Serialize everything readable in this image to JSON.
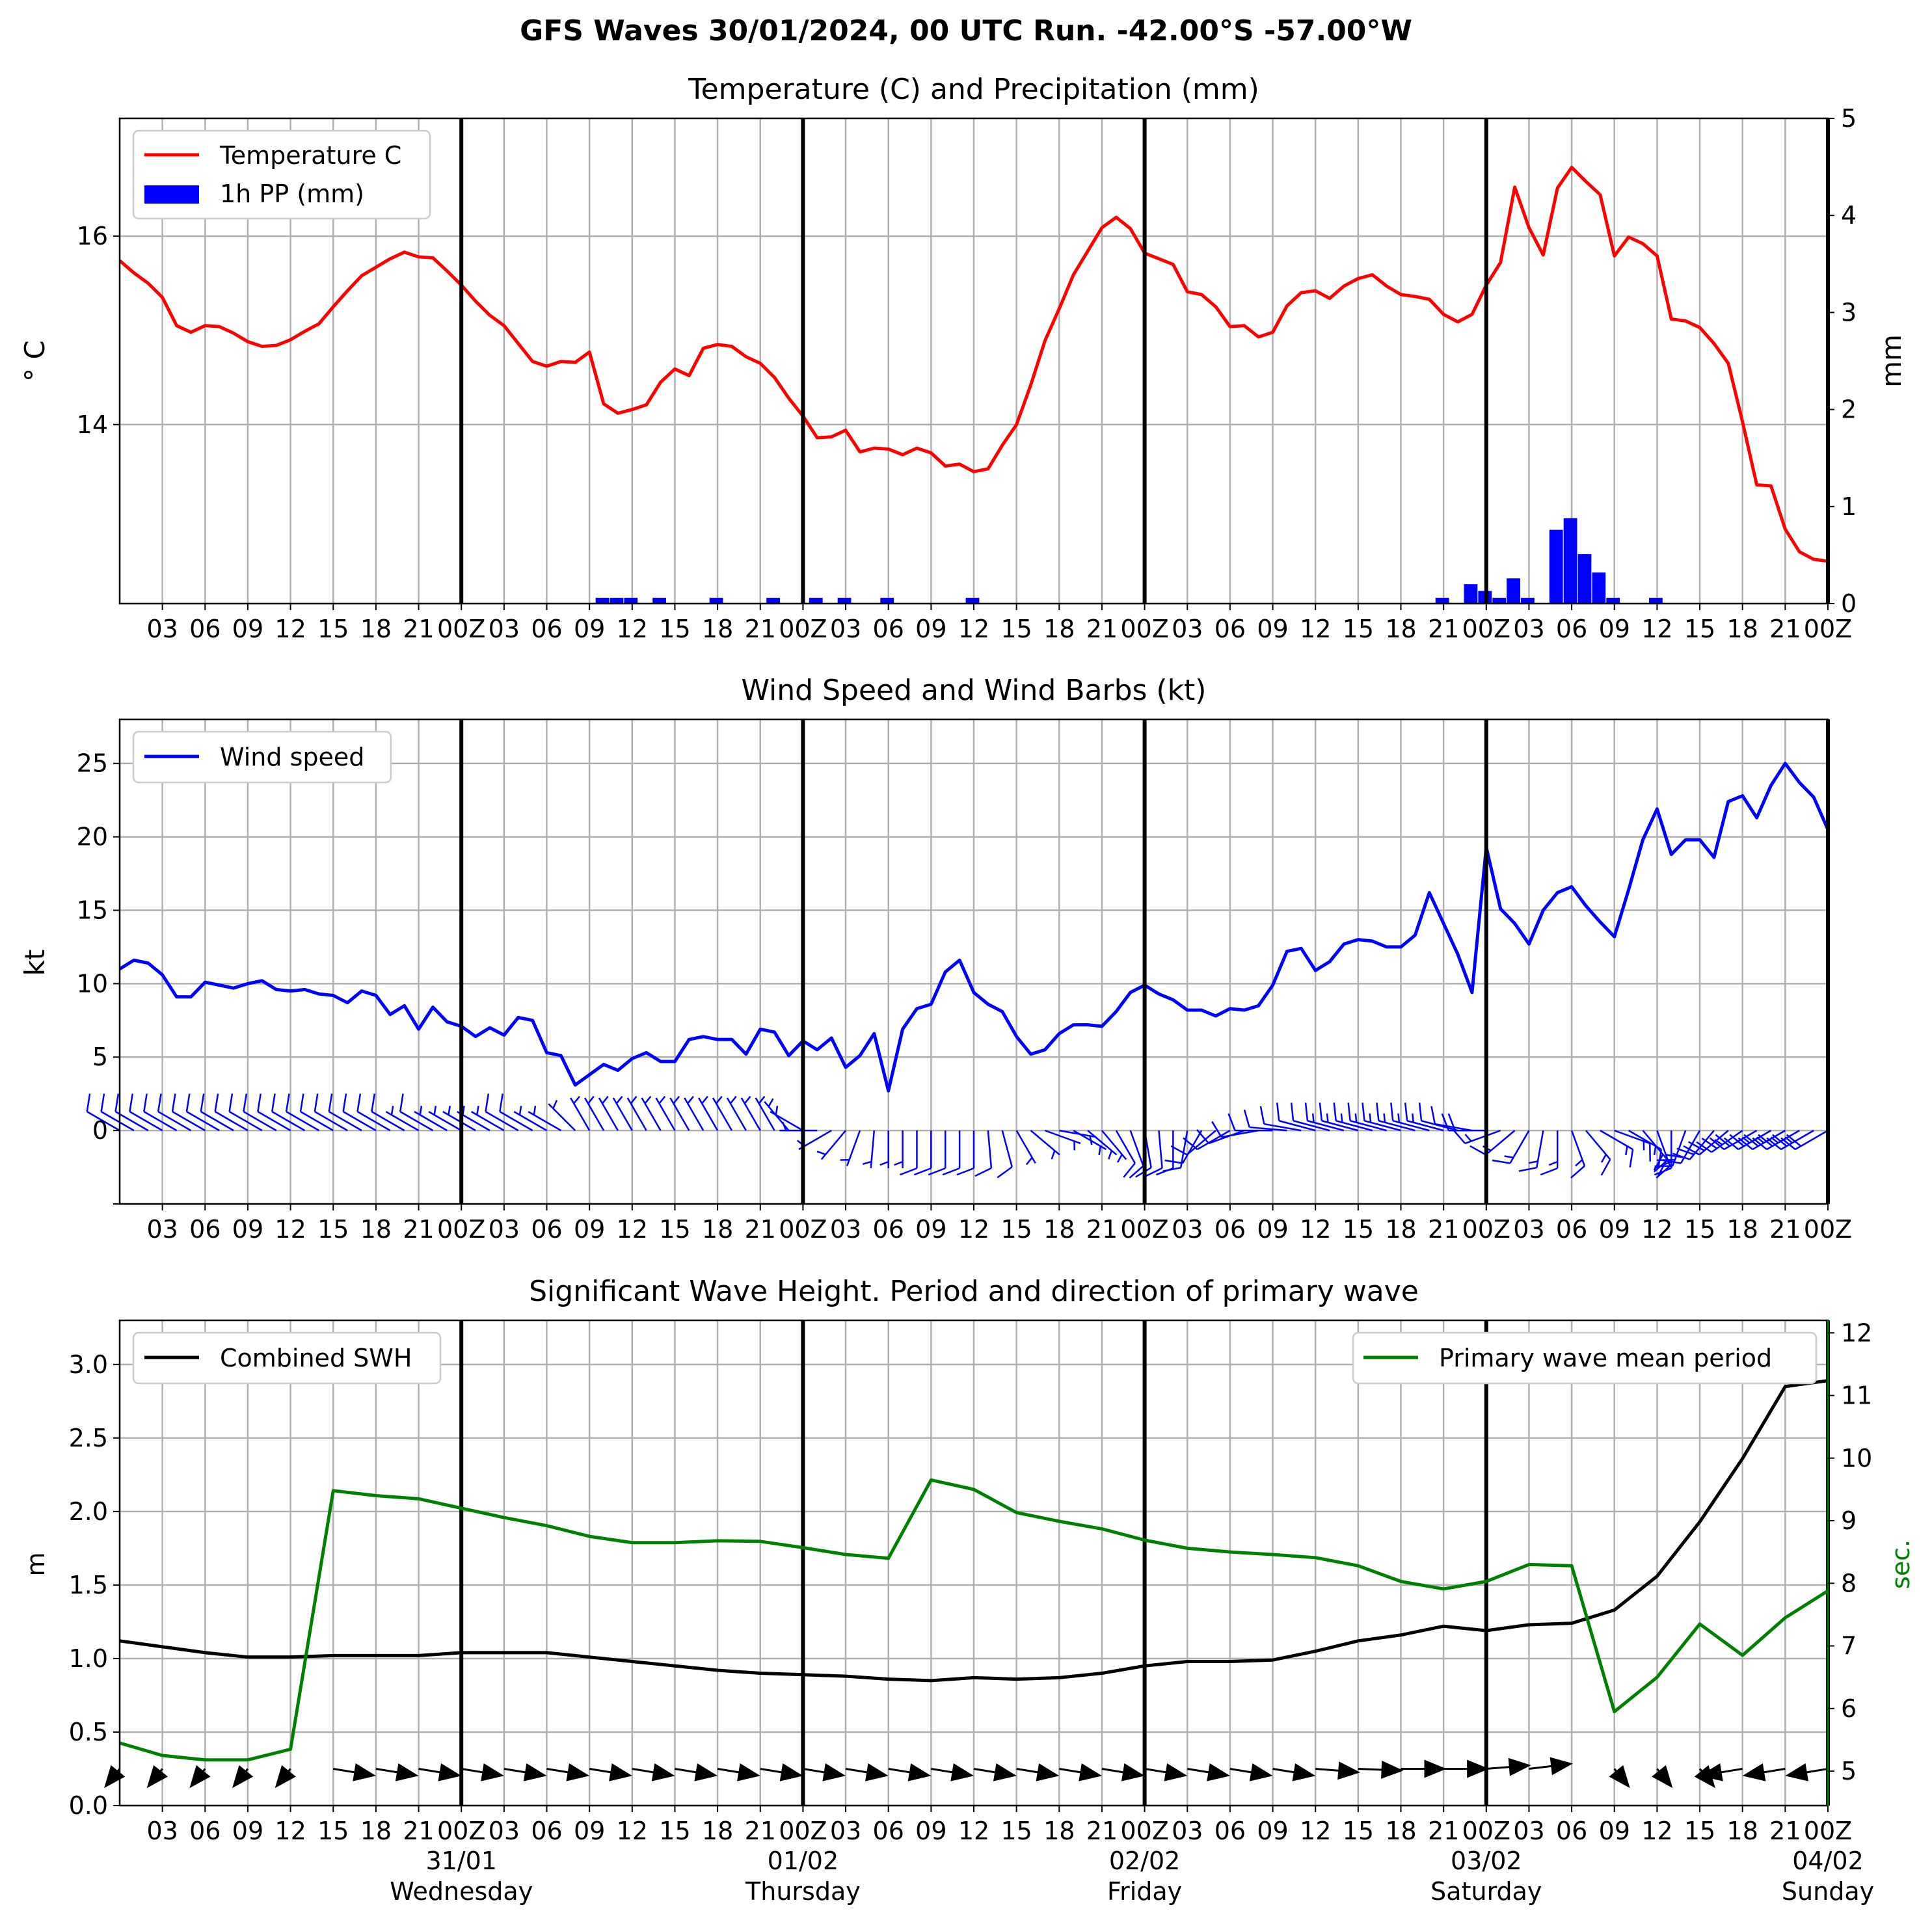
{
  "figure": {
    "title": "GFS Waves 30/01/2024, 00 UTC Run. -42.00°S -57.00°W",
    "x_tick_labels": [
      "03",
      "06",
      "09",
      "12",
      "15",
      "18",
      "21",
      "00Z",
      "03",
      "06",
      "09",
      "12",
      "15",
      "18",
      "21",
      "00Z",
      "03",
      "06",
      "09",
      "12",
      "15",
      "18",
      "21",
      "00Z",
      "03",
      "06",
      "09",
      "12",
      "15",
      "18",
      "21",
      "00Z",
      "03",
      "06",
      "09",
      "12",
      "15",
      "18",
      "21",
      "00Z"
    ],
    "day_labels": [
      {
        "date": "31/01",
        "day": "Wednesday"
      },
      {
        "date": "01/02",
        "day": "Thursday"
      },
      {
        "date": "02/02",
        "day": "Friday"
      },
      {
        "date": "03/02",
        "day": "Saturday"
      },
      {
        "date": "04/02",
        "day": "Sunday"
      }
    ],
    "colors": {
      "temperature": "#ff0000",
      "precip": "#0000ff",
      "wind": "#0000ff",
      "swh": "#000000",
      "period": "#008000",
      "grid": "#b0b0b0"
    }
  },
  "chart_data": [
    {
      "type": "line",
      "title": "Temperature (C) and Precipitation (mm)",
      "x_unit": "hours since 30/01/2024 00 UTC",
      "ylabel": "$^\\circ$C",
      "ylabel_right": "mm",
      "ylim": [
        12.1,
        17.25
      ],
      "ylim_right": [
        0,
        5
      ],
      "y_ticks": [
        14,
        16
      ],
      "y_ticks_right": [
        0,
        1,
        2,
        3,
        4,
        5
      ],
      "legend": [
        "Temperature C",
        "1h PP (mm)"
      ],
      "legend_position": "upper-left",
      "grid": true,
      "series": [
        {
          "name": "Temperature C",
          "color": "#ff0000",
          "x": [
            0,
            1,
            2,
            3,
            4,
            5,
            6,
            7,
            8,
            9,
            10,
            11,
            12,
            13,
            14,
            15,
            16,
            17,
            18,
            19,
            20,
            21,
            22,
            23,
            24,
            25,
            26,
            27,
            28,
            29,
            30,
            31,
            32,
            33,
            34,
            35,
            36,
            37,
            38,
            39,
            40,
            41,
            42,
            43,
            44,
            45,
            46,
            47,
            48,
            49,
            50,
            51,
            52,
            53,
            54,
            55,
            56,
            57,
            58,
            59,
            60,
            61,
            62,
            63,
            64,
            65,
            66,
            67,
            68,
            69,
            70,
            71,
            72,
            73,
            74,
            75,
            76,
            77,
            78,
            79,
            80,
            81,
            82,
            83,
            84,
            85,
            86,
            87,
            88,
            89,
            90,
            91,
            92,
            93,
            94,
            95,
            96,
            97,
            98,
            99,
            100,
            101,
            102,
            103,
            104,
            105,
            106,
            107,
            108,
            109,
            110,
            111,
            112,
            113,
            114,
            115,
            116,
            117,
            118,
            119,
            120
          ],
          "values": [
            15.74,
            15.61,
            15.5,
            15.35,
            15.05,
            14.98,
            15.05,
            15.04,
            14.97,
            14.88,
            14.83,
            14.84,
            14.9,
            14.99,
            15.07,
            15.25,
            15.42,
            15.58,
            15.67,
            15.76,
            15.83,
            15.78,
            15.77,
            15.63,
            15.48,
            15.31,
            15.16,
            15.05,
            14.86,
            14.67,
            14.62,
            14.67,
            14.66,
            14.77,
            14.22,
            14.12,
            14.16,
            14.21,
            14.45,
            14.59,
            14.52,
            14.81,
            14.85,
            14.83,
            14.72,
            14.65,
            14.5,
            14.28,
            14.09,
            13.86,
            13.87,
            13.94,
            13.71,
            13.75,
            13.74,
            13.68,
            13.75,
            13.7,
            13.56,
            13.58,
            13.5,
            13.53,
            13.78,
            14.0,
            14.42,
            14.89,
            15.23,
            15.59,
            15.84,
            16.09,
            16.2,
            16.08,
            15.82,
            15.76,
            15.7,
            15.41,
            15.38,
            15.25,
            15.04,
            15.05,
            14.93,
            14.98,
            15.26,
            15.4,
            15.42,
            15.34,
            15.47,
            15.55,
            15.59,
            15.47,
            15.38,
            15.36,
            15.33,
            15.17,
            15.09,
            15.17,
            15.48,
            15.72,
            16.52,
            16.09,
            15.8,
            16.51,
            16.73,
            16.58,
            16.44,
            15.79,
            15.99,
            15.92,
            15.79,
            15.12,
            15.1,
            15.03,
            14.86,
            14.65,
            14.03,
            13.36,
            13.35,
            12.89,
            12.65,
            12.57,
            12.55
          ]
        },
        {
          "name": "1h PP (mm)",
          "color": "#0000ff",
          "x": [
            34,
            35,
            36,
            38,
            42,
            46,
            49,
            51,
            54,
            60,
            93,
            95,
            96,
            97,
            98,
            99,
            101,
            102,
            103,
            104,
            105,
            106,
            108,
            110
          ],
          "values": [
            0.06,
            0.06,
            0.06,
            0.06,
            0.06,
            0.06,
            0.06,
            0.06,
            0.06,
            0.06,
            0.06,
            0.2,
            0.13,
            0.06,
            0.26,
            0.06,
            0.76,
            0.88,
            0.51,
            0.32,
            0.06,
            0.0,
            0.06,
            0.0
          ]
        }
      ]
    },
    {
      "type": "line",
      "title": "Wind Speed and Wind Barbs (kt)",
      "x_unit": "hours since 30/01/2024 00 UTC",
      "ylabel": "kt",
      "ylim": [
        -5,
        28
      ],
      "y_ticks": [
        0,
        5,
        10,
        15,
        20,
        25
      ],
      "legend": [
        "Wind speed"
      ],
      "legend_position": "upper-left",
      "grid": true,
      "series": [
        {
          "name": "Wind speed",
          "color": "#0000ff",
          "x": [
            0,
            1,
            2,
            3,
            4,
            5,
            6,
            7,
            8,
            9,
            10,
            11,
            12,
            13,
            14,
            15,
            16,
            17,
            18,
            19,
            20,
            21,
            22,
            23,
            24,
            25,
            26,
            27,
            28,
            29,
            30,
            31,
            32,
            33,
            34,
            35,
            36,
            37,
            38,
            39,
            40,
            41,
            42,
            43,
            44,
            45,
            46,
            47,
            48,
            49,
            50,
            51,
            52,
            53,
            54,
            55,
            56,
            57,
            58,
            59,
            60,
            61,
            62,
            63,
            64,
            65,
            66,
            67,
            68,
            69,
            70,
            71,
            72,
            73,
            74,
            75,
            76,
            77,
            78,
            79,
            80,
            81,
            82,
            83,
            84,
            85,
            86,
            87,
            88,
            89,
            90,
            91,
            92,
            93,
            94,
            95,
            96,
            97,
            98,
            99,
            100,
            101,
            102,
            103,
            104,
            105,
            106,
            107,
            108,
            109,
            110,
            111,
            112,
            113,
            114,
            115,
            116,
            117,
            118,
            119,
            120
          ],
          "values": [
            11.0,
            11.6,
            11.4,
            10.6,
            9.1,
            9.1,
            10.1,
            9.9,
            9.7,
            10.0,
            10.2,
            9.6,
            9.5,
            9.6,
            9.3,
            9.2,
            8.7,
            9.5,
            9.2,
            7.9,
            8.5,
            6.9,
            8.4,
            7.4,
            7.1,
            6.4,
            7.0,
            6.5,
            7.7,
            7.5,
            5.3,
            5.1,
            3.1,
            3.8,
            4.5,
            4.1,
            4.9,
            5.3,
            4.7,
            4.7,
            6.2,
            6.4,
            6.2,
            6.2,
            5.2,
            6.9,
            6.7,
            5.1,
            6.1,
            5.5,
            6.3,
            4.3,
            5.1,
            6.6,
            2.7,
            6.9,
            8.3,
            8.6,
            10.8,
            11.6,
            9.4,
            8.6,
            8.1,
            6.4,
            5.2,
            5.5,
            6.6,
            7.2,
            7.2,
            7.1,
            8.1,
            9.4,
            9.9,
            9.3,
            8.9,
            8.2,
            8.2,
            7.8,
            8.3,
            8.2,
            8.5,
            9.9,
            12.2,
            12.4,
            10.9,
            11.5,
            12.7,
            13.0,
            12.9,
            12.5,
            12.5,
            13.3,
            16.2,
            14.1,
            12.0,
            9.4,
            19.3,
            15.1,
            14.1,
            12.7,
            15.0,
            16.2,
            16.6,
            15.3,
            14.2,
            13.2,
            16.4,
            19.8,
            21.9,
            18.8,
            19.8,
            19.8,
            18.6,
            22.4,
            22.8,
            21.3,
            23.5,
            25.0,
            23.7,
            22.7,
            20.5
          ]
        }
      ],
      "barb_direction_deg": [
        300,
        300,
        300,
        300,
        300,
        300,
        300,
        300,
        300,
        300,
        300,
        300,
        300,
        300,
        300,
        300,
        300,
        300,
        300,
        300,
        300,
        300,
        300,
        300,
        300,
        300,
        300,
        300,
        300,
        300,
        300,
        300,
        315,
        330,
        330,
        330,
        330,
        330,
        330,
        330,
        330,
        330,
        330,
        330,
        330,
        330,
        330,
        320,
        300,
        270,
        240,
        220,
        200,
        185,
        180,
        180,
        180,
        180,
        180,
        180,
        180,
        175,
        165,
        150,
        130,
        110,
        100,
        120,
        130,
        140,
        150,
        160,
        170,
        175,
        180,
        190,
        210,
        230,
        240,
        250,
        260,
        270,
        275,
        280,
        285,
        285,
        285,
        285,
        285,
        285,
        285,
        285,
        285,
        285,
        285,
        280,
        270,
        250,
        230,
        210,
        190,
        180,
        160,
        140,
        120,
        110,
        120,
        140,
        160,
        180,
        200,
        210,
        220,
        230,
        235,
        240,
        240,
        240,
        240,
        240,
        240
      ]
    },
    {
      "type": "line",
      "title": "Significant Wave Height. Period and direction of primary wave",
      "x_unit": "hours since 30/01/2024 00 UTC",
      "ylabel": "m",
      "ylabel_right": "sec.",
      "ylim": [
        0,
        3.3
      ],
      "ylim_right": [
        4.45,
        12.2
      ],
      "y_ticks": [
        0.0,
        0.5,
        1.0,
        1.5,
        2.0,
        2.5,
        3.0
      ],
      "y_ticks_right": [
        5,
        6,
        7,
        8,
        9,
        10,
        11,
        12
      ],
      "legend": [
        "Combined SWH",
        "Primary wave mean period"
      ],
      "legend_position": "upper-left / upper-right",
      "grid": true,
      "series": [
        {
          "name": "Combined SWH",
          "color": "#000000",
          "x": [
            0,
            3,
            6,
            9,
            12,
            15,
            18,
            21,
            24,
            27,
            30,
            33,
            36,
            39,
            42,
            45,
            48,
            51,
            54,
            57,
            60,
            63,
            66,
            69,
            72,
            75,
            78,
            81,
            84,
            87,
            90,
            93,
            96,
            99,
            102,
            105,
            108,
            111,
            114,
            117,
            120
          ],
          "values": [
            1.12,
            1.08,
            1.04,
            1.01,
            1.01,
            1.02,
            1.02,
            1.02,
            1.04,
            1.04,
            1.04,
            1.01,
            0.98,
            0.95,
            0.92,
            0.9,
            0.89,
            0.88,
            0.86,
            0.85,
            0.87,
            0.86,
            0.87,
            0.9,
            0.95,
            0.98,
            0.98,
            0.99,
            1.05,
            1.12,
            1.16,
            1.22,
            1.19,
            1.23,
            1.24,
            1.33,
            1.56,
            1.93,
            2.36,
            2.85,
            2.89
          ]
        },
        {
          "name": "Primary wave mean period",
          "color": "#008000",
          "x": [
            0,
            3,
            6,
            9,
            12,
            15,
            18,
            21,
            24,
            27,
            30,
            33,
            36,
            39,
            42,
            45,
            48,
            51,
            54,
            57,
            60,
            63,
            66,
            69,
            72,
            75,
            78,
            81,
            84,
            87,
            90,
            93,
            96,
            99,
            102,
            105,
            108,
            111,
            114,
            117,
            120
          ],
          "values": [
            5.45,
            5.25,
            5.18,
            5.18,
            5.35,
            9.48,
            9.4,
            9.35,
            9.2,
            9.05,
            8.92,
            8.75,
            8.65,
            8.65,
            8.68,
            8.67,
            8.57,
            8.46,
            8.4,
            9.65,
            9.5,
            9.13,
            8.99,
            8.87,
            8.69,
            8.56,
            8.5,
            8.46,
            8.41,
            8.28,
            8.03,
            7.91,
            8.03,
            8.3,
            8.28,
            5.95,
            6.5,
            7.35,
            6.85,
            7.45,
            7.88
          ]
        }
      ],
      "arrow_direction_deg": [
        160,
        160,
        160,
        160,
        160,
        250,
        250,
        250,
        250,
        250,
        250,
        250,
        250,
        250,
        250,
        250,
        250,
        250,
        250,
        250,
        250,
        250,
        250,
        250,
        250,
        250,
        250,
        250,
        260,
        265,
        270,
        270,
        280,
        285,
        null,
        200,
        200,
        200,
        110,
        110,
        110
      ]
    }
  ]
}
